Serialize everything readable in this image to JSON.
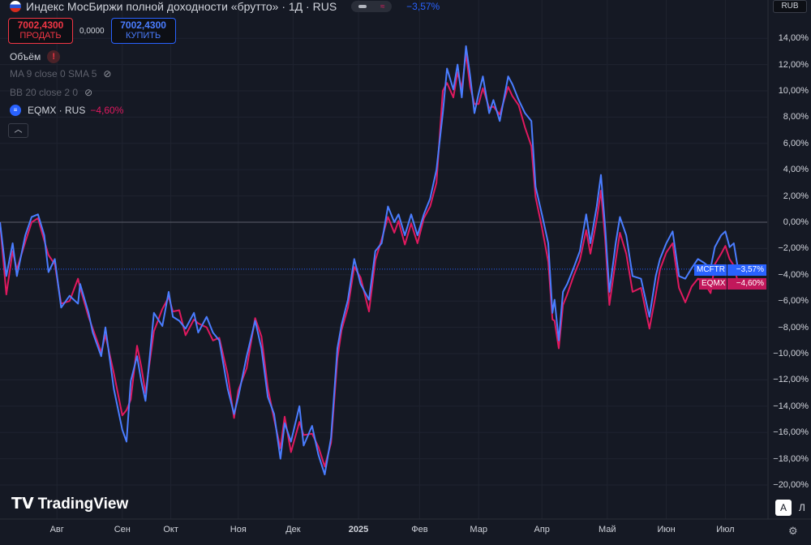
{
  "header": {
    "title": "Индекс МосБиржи полной доходности «брутто» · 1Д · RUS",
    "change": "−3,57%",
    "toggle_icon": "≈"
  },
  "trade": {
    "sell_price": "7002,4300",
    "sell_label": "ПРОДАТЬ",
    "spread": "0,0000",
    "buy_price": "7002,4300",
    "buy_label": "КУПИТЬ"
  },
  "legend": {
    "volume": "Объём",
    "warn": "!",
    "ma": "MA 9 close 0 SMA 5",
    "bb": "BB 20 close 2 0",
    "compare_symbol": "EQMX · RUS",
    "compare_change": "−4,60%",
    "eq_icon": "≡"
  },
  "currency": "RUB",
  "logo": "TradingView",
  "buttons": {
    "auto": "A",
    "log": "Л"
  },
  "colors": {
    "main": "#4a7dff",
    "compare": "#e0195f",
    "bg": "#151924"
  },
  "chart_data": {
    "type": "line",
    "y_ticks": [
      "14,00%",
      "12,00%",
      "10,00%",
      "8,00%",
      "6,00%",
      "4,00%",
      "2,00%",
      "0,00%",
      "−2,00%",
      "−4,00%",
      "−6,00%",
      "−8,00%",
      "−10,00%",
      "−12,00%",
      "−14,00%",
      "−16,00%",
      "−18,00%",
      "−20,00%"
    ],
    "y_tick_values": [
      14,
      12,
      10,
      8,
      6,
      4,
      2,
      0,
      -2,
      -4,
      -6,
      -8,
      -10,
      -12,
      -14,
      -16,
      -18,
      -20
    ],
    "x_ticks": [
      {
        "label": "Авг",
        "day": 27
      },
      {
        "label": "Сен",
        "day": 58
      },
      {
        "label": "Окт",
        "day": 81
      },
      {
        "label": "Ноя",
        "day": 113
      },
      {
        "label": "Дек",
        "day": 139
      },
      {
        "label": "2025",
        "day": 170
      },
      {
        "label": "Фев",
        "day": 199
      },
      {
        "label": "Мар",
        "day": 227
      },
      {
        "label": "Апр",
        "day": 257
      },
      {
        "label": "Май",
        "day": 288
      },
      {
        "label": "Июн",
        "day": 316
      },
      {
        "label": "Июл",
        "day": 344
      }
    ],
    "xlim": [
      0,
      363
    ],
    "ylim": [
      -21,
      15
    ],
    "series": [
      {
        "name": "MCFTR",
        "last_label": "−3,57%",
        "points": [
          [
            0,
            0
          ],
          [
            3,
            -4.1
          ],
          [
            6,
            -1.6
          ],
          [
            8,
            -4.1
          ],
          [
            12,
            -1
          ],
          [
            15,
            0.4
          ],
          [
            18,
            0.6
          ],
          [
            21,
            -1
          ],
          [
            23,
            -3.8
          ],
          [
            26,
            -2.8
          ],
          [
            29,
            -6.5
          ],
          [
            33,
            -5.6
          ],
          [
            37,
            -6.2
          ],
          [
            38,
            -4.7
          ],
          [
            42,
            -6.9
          ],
          [
            44,
            -8.4
          ],
          [
            48,
            -10.2
          ],
          [
            50,
            -8
          ],
          [
            54,
            -12.7
          ],
          [
            58,
            -15.8
          ],
          [
            60,
            -16.7
          ],
          [
            62,
            -12.1
          ],
          [
            65,
            -10.2
          ],
          [
            67,
            -12.1
          ],
          [
            69,
            -13.6
          ],
          [
            73,
            -6.9
          ],
          [
            77,
            -7.9
          ],
          [
            80,
            -5.3
          ],
          [
            82,
            -7.2
          ],
          [
            85,
            -7.5
          ],
          [
            88,
            -8.1
          ],
          [
            92,
            -6.9
          ],
          [
            94,
            -8.4
          ],
          [
            98,
            -7.2
          ],
          [
            101,
            -8.4
          ],
          [
            104,
            -9
          ],
          [
            108,
            -12.7
          ],
          [
            111,
            -14.6
          ],
          [
            113,
            -13.3
          ],
          [
            117,
            -10.2
          ],
          [
            121,
            -7.5
          ],
          [
            124,
            -9.6
          ],
          [
            127,
            -13.3
          ],
          [
            130,
            -14.6
          ],
          [
            133,
            -18
          ],
          [
            135,
            -15.3
          ],
          [
            138,
            -16.7
          ],
          [
            142,
            -14
          ],
          [
            144,
            -17
          ],
          [
            148,
            -15.5
          ],
          [
            151,
            -17.7
          ],
          [
            154,
            -19.2
          ],
          [
            157,
            -16.4
          ],
          [
            160,
            -9.6
          ],
          [
            162,
            -7.8
          ],
          [
            165,
            -5.9
          ],
          [
            168,
            -2.8
          ],
          [
            171,
            -4.7
          ],
          [
            175,
            -5.9
          ],
          [
            178,
            -2.2
          ],
          [
            181,
            -1.6
          ],
          [
            184,
            1.2
          ],
          [
            187,
            0
          ],
          [
            189,
            0.6
          ],
          [
            192,
            -1
          ],
          [
            195,
            0.6
          ],
          [
            198,
            -1
          ],
          [
            201,
            0.6
          ],
          [
            204,
            1.8
          ],
          [
            207,
            4
          ],
          [
            210,
            8.3
          ],
          [
            212,
            11.7
          ],
          [
            215,
            10.1
          ],
          [
            217,
            12
          ],
          [
            219,
            9.5
          ],
          [
            221,
            13.4
          ],
          [
            223,
            11.1
          ],
          [
            225,
            8.3
          ],
          [
            227,
            9.8
          ],
          [
            229,
            11.1
          ],
          [
            232,
            8.3
          ],
          [
            234,
            9.3
          ],
          [
            237,
            7.7
          ],
          [
            241,
            11.1
          ],
          [
            243,
            10.5
          ],
          [
            246,
            9.3
          ],
          [
            249,
            8.3
          ],
          [
            252,
            7.7
          ],
          [
            254,
            2.7
          ],
          [
            257,
            0.6
          ],
          [
            260,
            -1.6
          ],
          [
            262,
            -6.9
          ],
          [
            263,
            -5.9
          ],
          [
            265,
            -9
          ],
          [
            267,
            -5.3
          ],
          [
            269,
            -4.7
          ],
          [
            272,
            -3.5
          ],
          [
            275,
            -2.2
          ],
          [
            278,
            0.6
          ],
          [
            280,
            -1.6
          ],
          [
            283,
            1.2
          ],
          [
            285,
            3.6
          ],
          [
            287,
            -0.4
          ],
          [
            289,
            -5.3
          ],
          [
            292,
            -1.6
          ],
          [
            294,
            0.4
          ],
          [
            297,
            -1
          ],
          [
            300,
            -4.1
          ],
          [
            304,
            -4.3
          ],
          [
            308,
            -7.2
          ],
          [
            311,
            -4.1
          ],
          [
            313,
            -2.8
          ],
          [
            316,
            -1.6
          ],
          [
            319,
            -0.7
          ],
          [
            322,
            -4.1
          ],
          [
            325,
            -4.3
          ],
          [
            328,
            -3.5
          ],
          [
            331,
            -2.8
          ],
          [
            334,
            -3.1
          ],
          [
            337,
            -3.5
          ],
          [
            339,
            -1.9
          ],
          [
            342,
            -1
          ],
          [
            344,
            -0.7
          ],
          [
            346,
            -1.9
          ],
          [
            348,
            -1.6
          ],
          [
            350,
            -3.57
          ]
        ]
      },
      {
        "name": "EQMX",
        "last_label": "−4,60%",
        "points": [
          [
            0,
            0
          ],
          [
            3,
            -5.5
          ],
          [
            6,
            -2.2
          ],
          [
            8,
            -3.6
          ],
          [
            12,
            -1.5
          ],
          [
            15,
            0
          ],
          [
            18,
            0.3
          ],
          [
            21,
            -1.4
          ],
          [
            23,
            -2.5
          ],
          [
            26,
            -3.2
          ],
          [
            29,
            -6.2
          ],
          [
            33,
            -6
          ],
          [
            37,
            -4.3
          ],
          [
            38,
            -5
          ],
          [
            42,
            -7.2
          ],
          [
            44,
            -8.1
          ],
          [
            48,
            -9.9
          ],
          [
            50,
            -8.6
          ],
          [
            54,
            -11.5
          ],
          [
            58,
            -14.7
          ],
          [
            60,
            -14.3
          ],
          [
            62,
            -13.5
          ],
          [
            65,
            -9.4
          ],
          [
            67,
            -11
          ],
          [
            69,
            -13
          ],
          [
            73,
            -8.3
          ],
          [
            77,
            -6.6
          ],
          [
            80,
            -5.7
          ],
          [
            82,
            -6.8
          ],
          [
            85,
            -6.7
          ],
          [
            88,
            -8.6
          ],
          [
            92,
            -7.4
          ],
          [
            94,
            -7.7
          ],
          [
            98,
            -8
          ],
          [
            101,
            -9
          ],
          [
            104,
            -8.8
          ],
          [
            108,
            -11.6
          ],
          [
            111,
            -14.9
          ],
          [
            113,
            -12.8
          ],
          [
            117,
            -11.1
          ],
          [
            121,
            -7.3
          ],
          [
            124,
            -8.7
          ],
          [
            127,
            -12.6
          ],
          [
            130,
            -15
          ],
          [
            133,
            -17.2
          ],
          [
            135,
            -14.8
          ],
          [
            138,
            -17.5
          ],
          [
            142,
            -15.2
          ],
          [
            144,
            -16.2
          ],
          [
            148,
            -16.1
          ],
          [
            151,
            -17.1
          ],
          [
            154,
            -18.6
          ],
          [
            157,
            -16.8
          ],
          [
            160,
            -10.4
          ],
          [
            162,
            -8.2
          ],
          [
            165,
            -6.5
          ],
          [
            168,
            -3.4
          ],
          [
            171,
            -4.2
          ],
          [
            175,
            -6.8
          ],
          [
            178,
            -2.9
          ],
          [
            181,
            -1.3
          ],
          [
            184,
            0.4
          ],
          [
            187,
            -0.8
          ],
          [
            189,
            0.1
          ],
          [
            192,
            -1.7
          ],
          [
            195,
            -0.1
          ],
          [
            198,
            -1.6
          ],
          [
            201,
            0.3
          ],
          [
            204,
            1.2
          ],
          [
            207,
            3
          ],
          [
            210,
            10
          ],
          [
            212,
            10.6
          ],
          [
            215,
            9.5
          ],
          [
            217,
            11.4
          ],
          [
            219,
            10.2
          ],
          [
            221,
            12.8
          ],
          [
            223,
            10.3
          ],
          [
            225,
            9
          ],
          [
            227,
            9
          ],
          [
            229,
            10.2
          ],
          [
            232,
            8.7
          ],
          [
            234,
            8.8
          ],
          [
            237,
            8.2
          ],
          [
            241,
            10.3
          ],
          [
            243,
            9.6
          ],
          [
            246,
            8.9
          ],
          [
            249,
            7.2
          ],
          [
            252,
            5.8
          ],
          [
            254,
            1.9
          ],
          [
            257,
            -0.4
          ],
          [
            260,
            -3
          ],
          [
            262,
            -7.4
          ],
          [
            263,
            -7.5
          ],
          [
            265,
            -9.6
          ],
          [
            267,
            -6.3
          ],
          [
            269,
            -5.5
          ],
          [
            272,
            -4.1
          ],
          [
            275,
            -2.9
          ],
          [
            278,
            -0.6
          ],
          [
            280,
            -2.4
          ],
          [
            283,
            0.2
          ],
          [
            285,
            2.4
          ],
          [
            287,
            -1.3
          ],
          [
            289,
            -6.3
          ],
          [
            292,
            -2.9
          ],
          [
            294,
            -0.8
          ],
          [
            297,
            -2.4
          ],
          [
            300,
            -5.3
          ],
          [
            304,
            -5
          ],
          [
            308,
            -8.1
          ],
          [
            311,
            -5.5
          ],
          [
            313,
            -3.6
          ],
          [
            316,
            -2.3
          ],
          [
            319,
            -1.6
          ],
          [
            322,
            -5
          ],
          [
            325,
            -6.1
          ],
          [
            328,
            -4.9
          ],
          [
            331,
            -4.3
          ],
          [
            334,
            -4.6
          ],
          [
            337,
            -5.4
          ],
          [
            339,
            -3.2
          ],
          [
            342,
            -2.4
          ],
          [
            344,
            -1.8
          ],
          [
            346,
            -2.8
          ],
          [
            348,
            -3.3
          ],
          [
            350,
            -4.6
          ]
        ]
      }
    ]
  }
}
